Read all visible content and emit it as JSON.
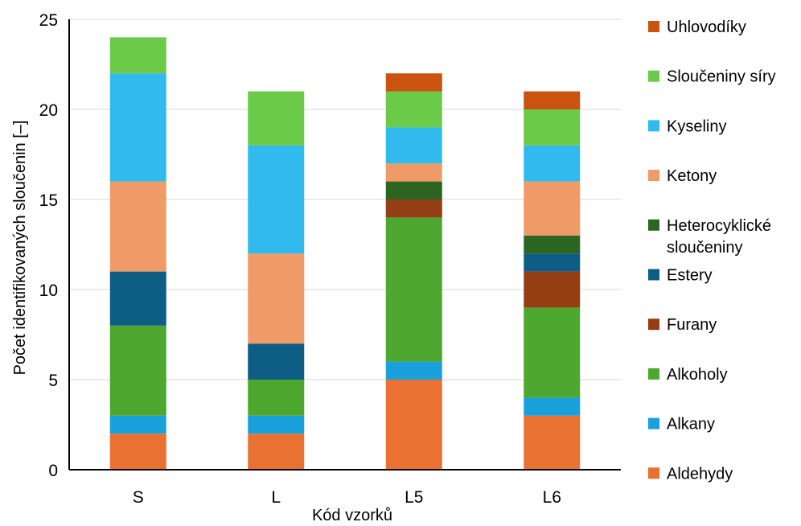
{
  "chart_data": {
    "type": "bar",
    "stacked": true,
    "xlabel": "Kód vzorků",
    "ylabel": "Počet identifikovaných sloučenin [–]",
    "ylim": [
      0,
      25
    ],
    "yticks": [
      0,
      5,
      10,
      15,
      20,
      25
    ],
    "grid": true,
    "legend_position": "right",
    "categories": [
      "S",
      "L",
      "L5",
      "L6"
    ],
    "series": [
      {
        "name": "Aldehydy",
        "color": "#E97132",
        "values": [
          2,
          2,
          5,
          3
        ]
      },
      {
        "name": "Alkany",
        "color": "#1AA0DA",
        "values": [
          1,
          1,
          1,
          1
        ]
      },
      {
        "name": "Alkoholy",
        "color": "#4EA72E",
        "values": [
          5,
          2,
          8,
          5
        ]
      },
      {
        "name": "Furany",
        "color": "#953E13",
        "values": [
          0,
          0,
          1,
          2
        ]
      },
      {
        "name": "Estery",
        "color": "#0E5D85",
        "values": [
          3,
          2,
          0,
          1
        ]
      },
      {
        "name": "Heterocyklické sloučeniny",
        "color": "#2B6521",
        "values": [
          0,
          0,
          1,
          1
        ]
      },
      {
        "name": "Ketony",
        "color": "#F09A67",
        "values": [
          5,
          5,
          1,
          3
        ]
      },
      {
        "name": "Kyseliny",
        "color": "#30BAEE",
        "values": [
          6,
          6,
          2,
          2
        ]
      },
      {
        "name": "Sloučeniny síry",
        "color": "#6BCB48",
        "values": [
          2,
          3,
          2,
          2
        ]
      },
      {
        "name": "Uhlovodíky",
        "color": "#C9530F",
        "values": [
          0,
          0,
          1,
          1
        ]
      }
    ]
  }
}
